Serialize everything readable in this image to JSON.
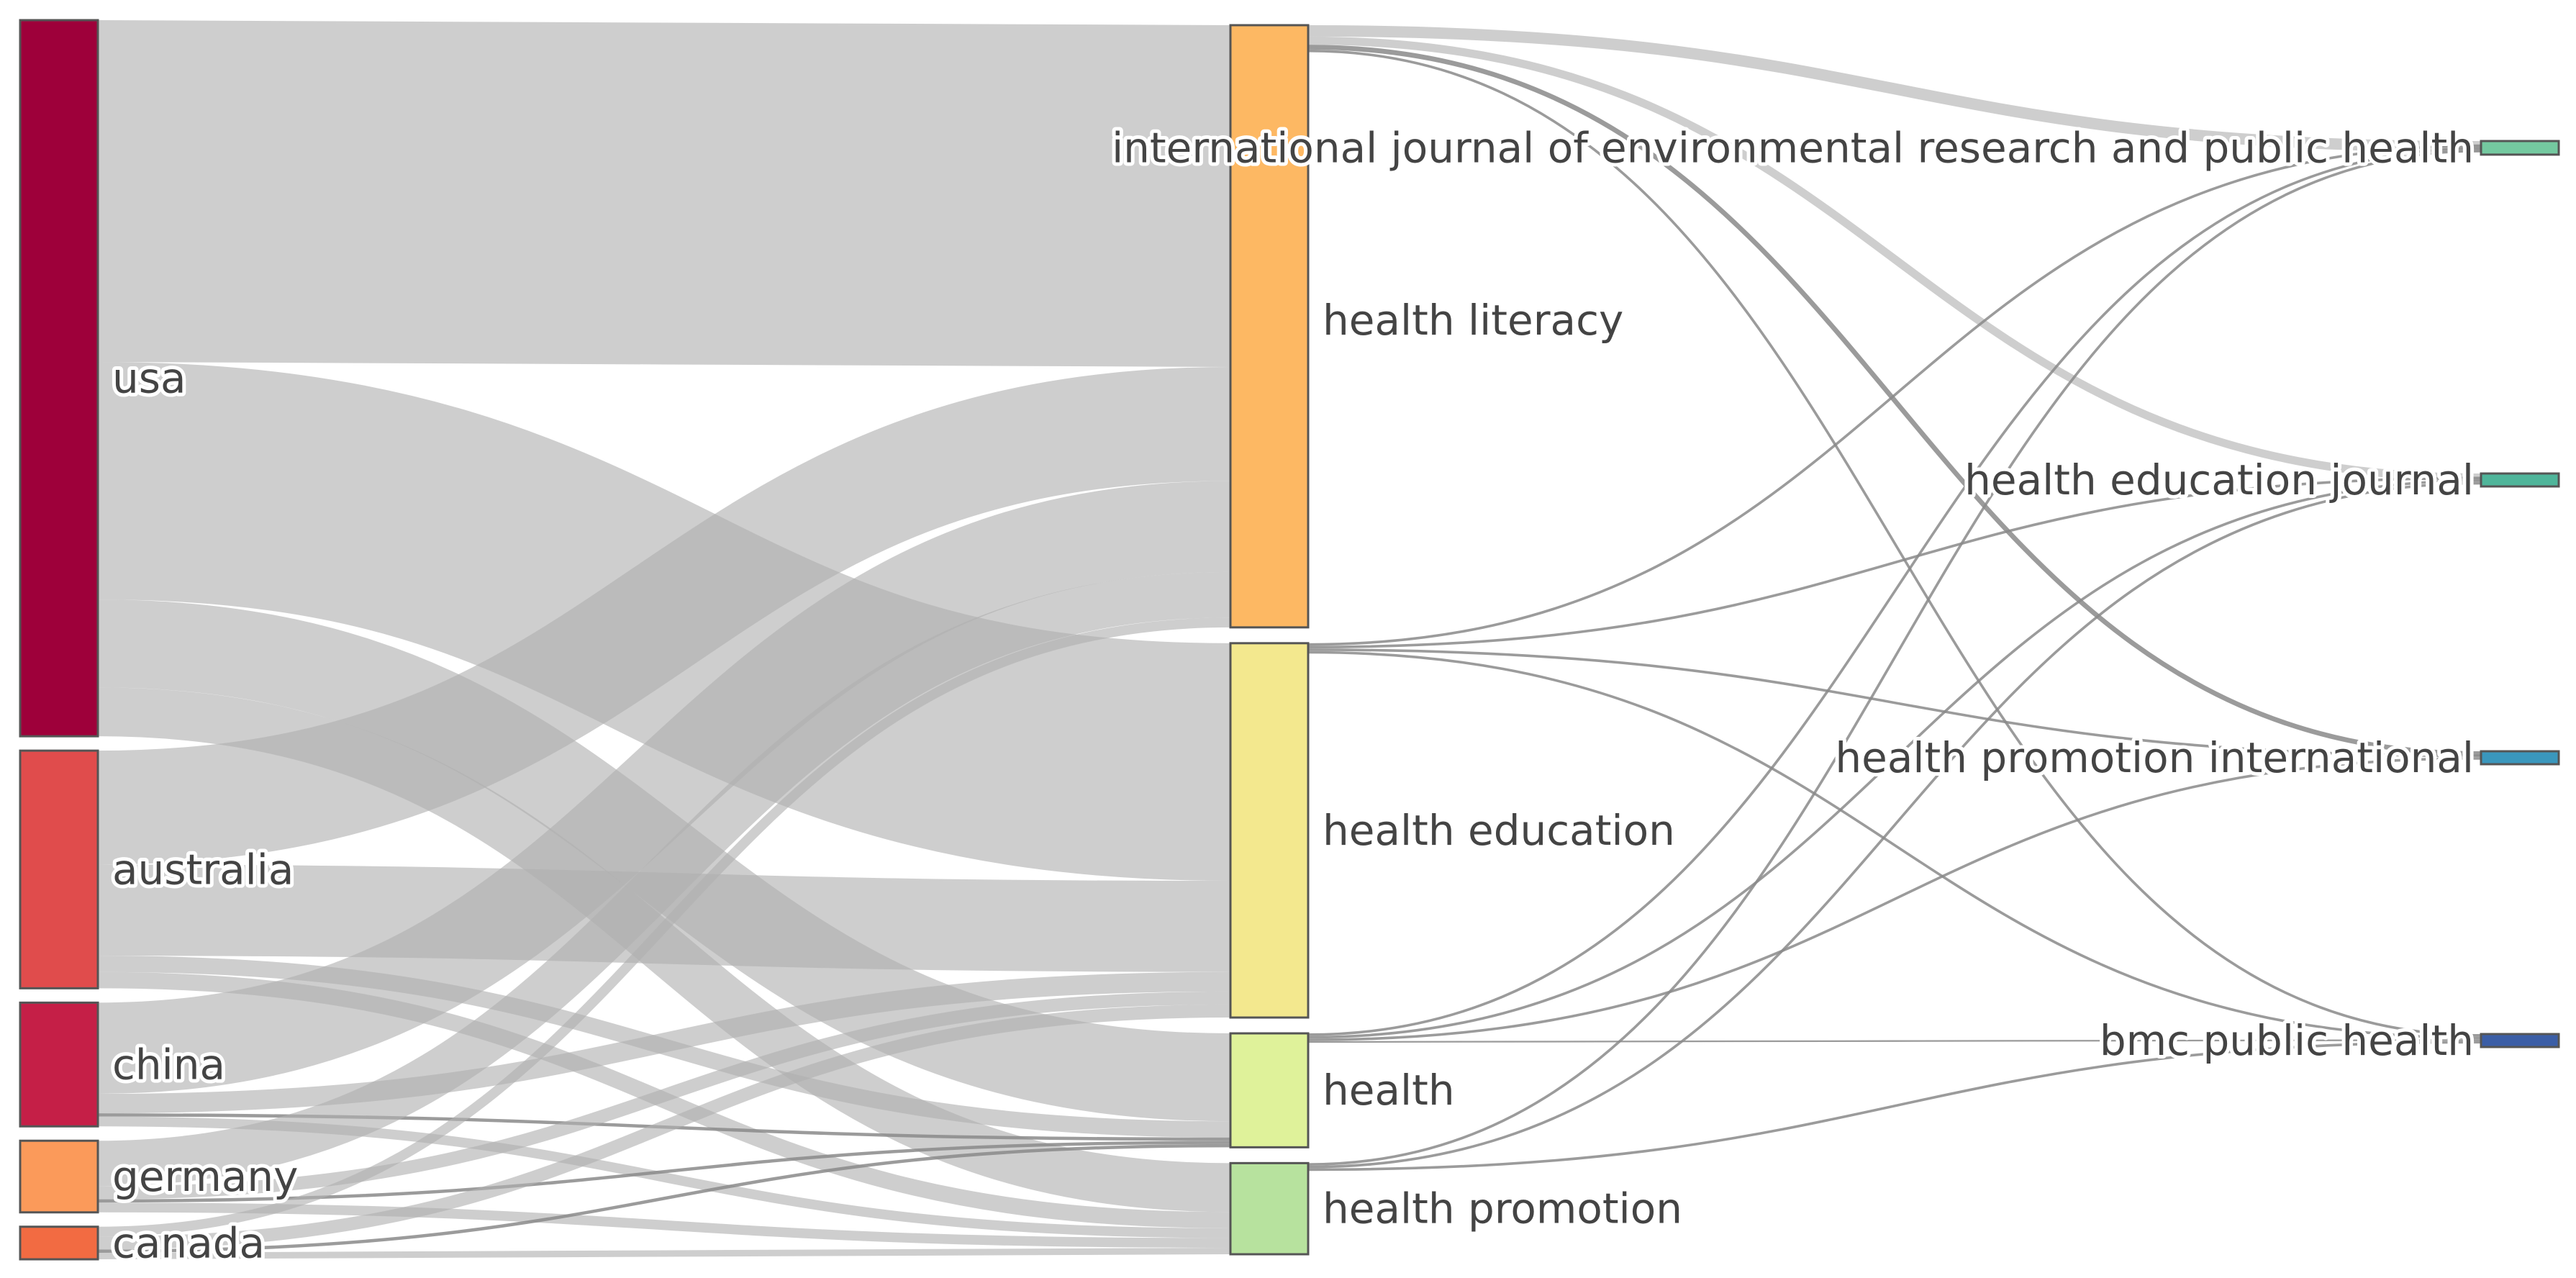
{
  "chart_data": {
    "type": "sankey",
    "columns": [
      [
        {
          "id": "usa",
          "label": "usa",
          "color": "#9e003a"
        },
        {
          "id": "australia",
          "label": "australia",
          "color": "#e04c4c"
        },
        {
          "id": "china",
          "label": "china",
          "color": "#c51f47"
        },
        {
          "id": "germany",
          "label": "germany",
          "color": "#fb9a5a"
        },
        {
          "id": "canada",
          "label": "canada",
          "color": "#f26b42"
        }
      ],
      [
        {
          "id": "health_literacy",
          "label": "health literacy",
          "color": "#fdb863"
        },
        {
          "id": "health_education",
          "label": "health education",
          "color": "#f3e88e"
        },
        {
          "id": "health",
          "label": "health",
          "color": "#dff29a"
        },
        {
          "id": "health_promotion",
          "label": "health promotion",
          "color": "#b7e29e"
        }
      ],
      [
        {
          "id": "ijerph",
          "label": "international journal of environmental research and public health",
          "color": "#74c9a0"
        },
        {
          "id": "hej",
          "label": "health education journal",
          "color": "#4fb59a"
        },
        {
          "id": "hpi",
          "label": "health promotion international",
          "color": "#3a97bd"
        },
        {
          "id": "bmc",
          "label": "bmc public health",
          "color": "#3b5ea6"
        }
      ]
    ],
    "links": [
      {
        "source": "usa",
        "target": "health_literacy",
        "value": 105
      },
      {
        "source": "usa",
        "target": "health_education",
        "value": 73
      },
      {
        "source": "usa",
        "target": "health",
        "value": 27
      },
      {
        "source": "usa",
        "target": "health_promotion",
        "value": 15
      },
      {
        "source": "australia",
        "target": "health_literacy",
        "value": 35
      },
      {
        "source": "australia",
        "target": "health_education",
        "value": 28
      },
      {
        "source": "australia",
        "target": "health",
        "value": 5
      },
      {
        "source": "australia",
        "target": "health_promotion",
        "value": 5
      },
      {
        "source": "china",
        "target": "health_literacy",
        "value": 28
      },
      {
        "source": "china",
        "target": "health_education",
        "value": 6
      },
      {
        "source": "china",
        "target": "health",
        "value": 1
      },
      {
        "source": "china",
        "target": "health_promotion",
        "value": 3
      },
      {
        "source": "germany",
        "target": "health_literacy",
        "value": 14
      },
      {
        "source": "germany",
        "target": "health_education",
        "value": 4
      },
      {
        "source": "germany",
        "target": "health",
        "value": 1
      },
      {
        "source": "germany",
        "target": "health_promotion",
        "value": 3
      },
      {
        "source": "canada",
        "target": "health_literacy",
        "value": 3
      },
      {
        "source": "canada",
        "target": "health_education",
        "value": 4
      },
      {
        "source": "canada",
        "target": "health",
        "value": 1
      },
      {
        "source": "canada",
        "target": "health_promotion",
        "value": 2
      },
      {
        "source": "health_literacy",
        "target": "ijerph",
        "value": 3.5
      },
      {
        "source": "health_literacy",
        "target": "hej",
        "value": 2.5
      },
      {
        "source": "health_literacy",
        "target": "hpi",
        "value": 1.5
      },
      {
        "source": "health_literacy",
        "target": "bmc",
        "value": 0.8
      },
      {
        "source": "health_education",
        "target": "ijerph",
        "value": 0.8
      },
      {
        "source": "health_education",
        "target": "hej",
        "value": 0.8
      },
      {
        "source": "health_education",
        "target": "hpi",
        "value": 0.8
      },
      {
        "source": "health_education",
        "target": "bmc",
        "value": 0.8
      },
      {
        "source": "health",
        "target": "ijerph",
        "value": 0.8
      },
      {
        "source": "health",
        "target": "hej",
        "value": 0.8
      },
      {
        "source": "health",
        "target": "hpi",
        "value": 0.8
      },
      {
        "source": "health",
        "target": "bmc",
        "value": 0.5
      },
      {
        "source": "health_promotion",
        "target": "ijerph",
        "value": 0.8
      },
      {
        "source": "health_promotion",
        "target": "hej",
        "value": 0.8
      },
      {
        "source": "health_promotion",
        "target": "bmc",
        "value": 0.8
      }
    ],
    "link_color": "#b0b0b0",
    "title": "",
    "legend": "none"
  }
}
